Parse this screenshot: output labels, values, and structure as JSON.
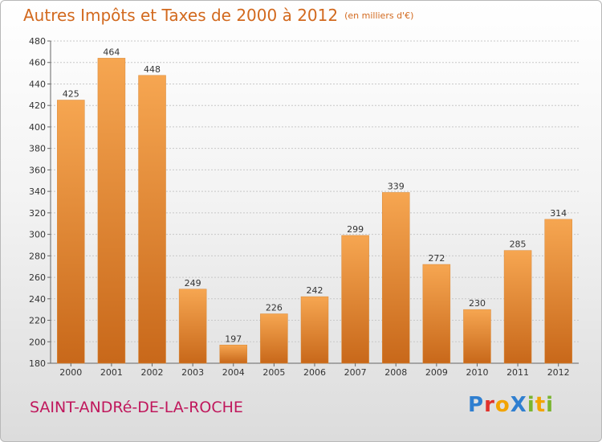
{
  "title": "Autres Impôts et Taxes de 2000 à 2012",
  "subtitle": "(en milliers d'€)",
  "place_name": "SAINT-ANDRé-DE-LA-ROCHE",
  "logo": {
    "text": "ProXiti",
    "letters": [
      {
        "char": "P",
        "color": "#2f7fd0"
      },
      {
        "char": "r",
        "color": "#e0322c"
      },
      {
        "char": "o",
        "color": "#f2a400"
      },
      {
        "char": "X",
        "color": "#2f7fd0"
      },
      {
        "char": "i",
        "color": "#7ab530"
      },
      {
        "char": "t",
        "color": "#f2a400"
      },
      {
        "char": "i",
        "color": "#7ab530"
      }
    ]
  },
  "colors": {
    "bar_light": "#f6a651",
    "bar_dark": "#c8681a",
    "title": "#d2691e",
    "place": "#c0175c"
  },
  "chart_data": {
    "type": "bar",
    "title": "Autres Impôts et Taxes de 2000 à 2012",
    "subtitle": "(en milliers d'€)",
    "categories": [
      "2000",
      "2001",
      "2002",
      "2003",
      "2004",
      "2005",
      "2006",
      "2007",
      "2008",
      "2009",
      "2010",
      "2011",
      "2012"
    ],
    "values": [
      425,
      464,
      448,
      249,
      197,
      226,
      242,
      299,
      339,
      272,
      230,
      285,
      314
    ],
    "ylim": [
      180,
      480
    ],
    "yticks": [
      180,
      200,
      220,
      240,
      260,
      280,
      300,
      320,
      340,
      360,
      380,
      400,
      420,
      440,
      460,
      480
    ],
    "grid": true,
    "data_labels": true
  }
}
